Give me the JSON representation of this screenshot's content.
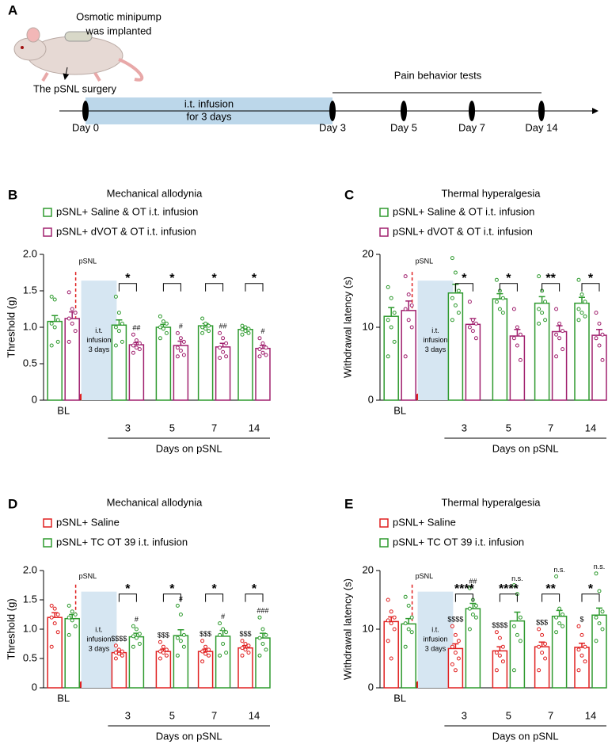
{
  "panel_a": {
    "label": "A",
    "pump_text": [
      "Osmotic minipump",
      "was implanted"
    ],
    "surgery": "The pSNL surgery",
    "tests": "Pain behavior tests",
    "infusion": [
      "i.t. infusion",
      "for 3 days"
    ],
    "days": [
      "Day 0",
      "Day 3",
      "Day 5",
      "Day 7",
      "Day 14"
    ]
  },
  "chart_data": [
    {
      "type": "bar",
      "panel": "B",
      "title": "Mechanical allodynia",
      "ylabel": "Threshold (g)",
      "xlabel": "Days on pSNL",
      "marker": "pSNL",
      "shade_label": [
        "i.t.",
        "infusion",
        "3 days"
      ],
      "categories": [
        "BL",
        "3",
        "5",
        "7",
        "14"
      ],
      "ylim": [
        0,
        2
      ],
      "yticks": [
        0,
        0.5,
        {
          "value": 1,
          "label": "1.0"
        },
        1.5,
        {
          "value": 2,
          "label": "2.0"
        }
      ],
      "series": [
        {
          "name": "pSNL+ Saline & OT i.t. infusion",
          "color": "#2e9a2e",
          "values": [
            1.08,
            1.03,
            1.0,
            1.02,
            0.97
          ],
          "errors": [
            0.08,
            0.07,
            0.04,
            0.03,
            0.02
          ],
          "points": [
            [
              1.42,
              1.38,
              1.1,
              1.05,
              1.0,
              0.8,
              0.75
            ],
            [
              1.42,
              1.2,
              1.05,
              1.0,
              0.95,
              0.8,
              0.75
            ],
            [
              1.15,
              1.08,
              1.05,
              1.0,
              0.98,
              0.92,
              0.85
            ],
            [
              1.12,
              1.05,
              1.02,
              1.0,
              0.98,
              0.95,
              0.92
            ],
            [
              1.02,
              1.0,
              0.98,
              0.97,
              0.95,
              0.92,
              0.9
            ]
          ],
          "marks": [
            null,
            null,
            null,
            null,
            null
          ]
        },
        {
          "name": "pSNL+ dVOT & OT i.t. infusion",
          "color": "#a0206e",
          "values": [
            1.12,
            0.76,
            0.75,
            0.73,
            0.71
          ],
          "errors": [
            0.09,
            0.03,
            0.06,
            0.05,
            0.04
          ],
          "points": [
            [
              1.48,
              1.25,
              1.2,
              1.12,
              1.05,
              0.95,
              0.8
            ],
            [
              0.9,
              0.82,
              0.78,
              0.75,
              0.72,
              0.7,
              0.65
            ],
            [
              0.92,
              0.85,
              0.8,
              0.72,
              0.68,
              0.62,
              0.6
            ],
            [
              0.92,
              0.85,
              0.78,
              0.72,
              0.66,
              0.6,
              0.58
            ],
            [
              0.85,
              0.78,
              0.72,
              0.7,
              0.65,
              0.62,
              0.6
            ]
          ],
          "marks": [
            null,
            "##",
            "#",
            "##",
            "#"
          ]
        }
      ],
      "brackets": [
        null,
        "*",
        "*",
        "*",
        "*"
      ]
    },
    {
      "type": "bar",
      "panel": "C",
      "title": "Thermal hyperalgesia",
      "ylabel": "Withdrawal latency (s)",
      "xlabel": "Days on pSNL",
      "marker": "pSNL",
      "shade_label": [
        "i.t.",
        "infusion",
        "3 days"
      ],
      "categories": [
        "BL",
        "3",
        "5",
        "7",
        "14"
      ],
      "ylim": [
        0,
        20
      ],
      "yticks": [
        0,
        10,
        20
      ],
      "series": [
        {
          "name": "pSNL+ Saline & OT i.t. infusion",
          "color": "#2e9a2e",
          "values": [
            11.5,
            14.7,
            13.9,
            13.3,
            13.3
          ],
          "errors": [
            1.2,
            1.2,
            0.7,
            0.9,
            0.8
          ],
          "points": [
            [
              15.5,
              14,
              12,
              11,
              10,
              8,
              6
            ],
            [
              19.5,
              17.5,
              15,
              14,
              13,
              12,
              11
            ],
            [
              16.5,
              15,
              14,
              13.5,
              12.5,
              12
            ],
            [
              17,
              15,
              13.5,
              12.5,
              12,
              11,
              10.5
            ],
            [
              16.5,
              14.5,
              13.5,
              12.5,
              12,
              11.5,
              11
            ]
          ],
          "marks": [
            null,
            null,
            null,
            null,
            null
          ]
        },
        {
          "name": "pSNL+ dVOT & OT i.t. infusion",
          "color": "#a0206e",
          "values": [
            12.3,
            10.4,
            8.8,
            9.4,
            8.9
          ],
          "errors": [
            1.3,
            0.8,
            0.9,
            0.8,
            0.8
          ],
          "points": [
            [
              17,
              14.5,
              13,
              12.5,
              11,
              10,
              6
            ],
            [
              13.5,
              11,
              10.5,
              10,
              9.5,
              8.5
            ],
            [
              12.5,
              10,
              9,
              8.5,
              7.5,
              5.5
            ],
            [
              12.5,
              10.5,
              9.5,
              9,
              8.5,
              7,
              6
            ],
            [
              12,
              10.5,
              9,
              8.5,
              7.5,
              5.5
            ]
          ],
          "marks": [
            null,
            null,
            null,
            null,
            null
          ]
        }
      ],
      "brackets": [
        null,
        "*",
        "*",
        "**",
        "*"
      ]
    },
    {
      "type": "bar",
      "panel": "D",
      "title": "Mechanical allodynia",
      "ylabel": "Threshold (g)",
      "xlabel": "Days on pSNL",
      "marker": "pSNL",
      "shade_label": [
        "i.t.",
        "infusion",
        "3 days"
      ],
      "categories": [
        "BL",
        "3",
        "5",
        "7",
        "14"
      ],
      "ylim": [
        0,
        2
      ],
      "yticks": [
        0,
        0.5,
        {
          "value": 1,
          "label": "1.0"
        },
        1.5,
        {
          "value": 2,
          "label": "2.0"
        }
      ],
      "series": [
        {
          "name": "pSNL+ Saline",
          "color": "#e02020",
          "values": [
            1.2,
            0.6,
            0.62,
            0.62,
            0.68
          ],
          "errors": [
            0.08,
            0.03,
            0.04,
            0.04,
            0.04
          ],
          "points": [
            [
              1.4,
              1.35,
              1.25,
              1.2,
              1.1,
              0.95,
              0.7
            ],
            [
              0.72,
              0.65,
              0.62,
              0.6,
              0.58,
              0.55,
              0.5
            ],
            [
              0.78,
              0.7,
              0.65,
              0.62,
              0.6,
              0.55,
              0.5
            ],
            [
              0.8,
              0.7,
              0.65,
              0.62,
              0.58,
              0.55,
              0.45
            ],
            [
              0.8,
              0.75,
              0.72,
              0.68,
              0.65,
              0.6,
              0.55
            ]
          ],
          "marks": [
            null,
            "$$$$",
            "$$$",
            "$$$",
            "$$$"
          ]
        },
        {
          "name": "pSNL+ TC OT 39 i.t. infusion",
          "color": "#2e9a2e",
          "values": [
            1.18,
            0.87,
            0.89,
            0.88,
            0.85
          ],
          "errors": [
            0.07,
            0.06,
            0.1,
            0.1,
            0.08
          ],
          "points": [
            [
              1.4,
              1.3,
              1.25,
              1.2,
              1.15,
              1.05,
              0.9
            ],
            [
              1.05,
              1.0,
              0.92,
              0.88,
              0.85,
              0.75,
              0.7
            ],
            [
              1.4,
              1.25,
              0.9,
              0.85,
              0.8,
              0.7,
              0.55
            ],
            [
              1.1,
              1.0,
              0.95,
              0.9,
              0.75,
              0.6,
              0.55
            ],
            [
              1.2,
              1.0,
              0.9,
              0.85,
              0.75,
              0.65,
              0.55
            ]
          ],
          "marks": [
            null,
            "#",
            "#",
            "#",
            "###"
          ]
        }
      ],
      "brackets": [
        null,
        "*",
        "*",
        "*",
        "*"
      ]
    },
    {
      "type": "bar",
      "panel": "E",
      "title": "Thermal hyperalgesia",
      "ylabel": "Withdrawal latency (s)",
      "xlabel": "Days on pSNL",
      "marker": "pSNL",
      "shade_label": [
        "i.t.",
        "infusion",
        "3 days"
      ],
      "categories": [
        "BL",
        "3",
        "5",
        "7",
        "14"
      ],
      "ylim": [
        0,
        20
      ],
      "yticks": [
        0,
        10,
        20
      ],
      "series": [
        {
          "name": "pSNL+ Saline",
          "color": "#e02020",
          "values": [
            11.3,
            6.7,
            6.3,
            7.0,
            6.9
          ],
          "errors": [
            0.8,
            0.8,
            0.7,
            0.8,
            0.7
          ],
          "points": [
            [
              15,
              13,
              12,
              11.5,
              11,
              10,
              8,
              5
            ],
            [
              10.5,
              9,
              8,
              7,
              6,
              5,
              4,
              3
            ],
            [
              9.5,
              8.5,
              7,
              6,
              5.5,
              4.5,
              3
            ],
            [
              10,
              9,
              7.5,
              7,
              6,
              5,
              3
            ],
            [
              10.5,
              9,
              7,
              6.5,
              5.5,
              4.5,
              3
            ]
          ],
          "marks": [
            null,
            "$$$$",
            "$$$$",
            "$$$",
            "$"
          ]
        },
        {
          "name": "pSNL+ TC OT 39 i.t. infusion",
          "color": "#2e9a2e",
          "values": [
            10.9,
            13.5,
            11.4,
            12.2,
            12.4
          ],
          "errors": [
            0.9,
            0.9,
            1.5,
            1.0,
            1.2
          ],
          "points": [
            [
              15.5,
              14,
              12,
              11,
              10,
              9.5,
              7
            ],
            [
              17,
              15,
              14,
              13.5,
              12.5,
              12,
              10
            ],
            [
              17.5,
              16,
              12,
              10.5,
              9,
              8,
              3
            ],
            [
              19,
              13.5,
              12.5,
              12,
              11,
              10.5,
              9.5
            ],
            [
              19.5,
              16.5,
              13,
              12,
              11,
              10,
              8
            ]
          ],
          "marks": [
            null,
            "##",
            "n.s.",
            "n.s.",
            "n.s."
          ]
        }
      ],
      "brackets": [
        null,
        "****",
        "****",
        "**",
        "*"
      ]
    }
  ]
}
